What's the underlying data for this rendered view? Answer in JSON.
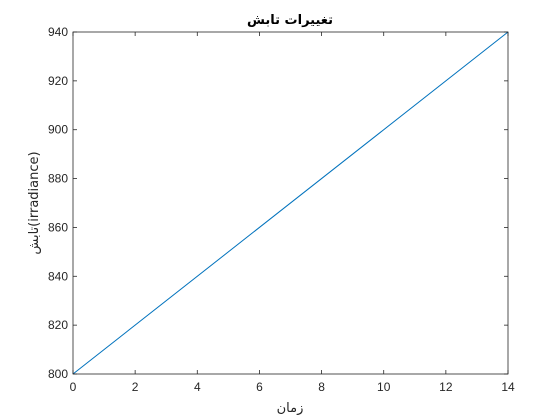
{
  "chart_data": {
    "type": "line",
    "title": "تغییرات تابش",
    "xlabel": "زمان",
    "ylabel": "تابش(irradiance)",
    "xlim": [
      0,
      14
    ],
    "ylim": [
      800,
      940
    ],
    "xticks": [
      0,
      2,
      4,
      6,
      8,
      10,
      12,
      14
    ],
    "yticks": [
      800,
      820,
      840,
      860,
      880,
      900,
      920,
      940
    ],
    "grid": false,
    "box": true,
    "series": [
      {
        "x": [
          0,
          14
        ],
        "y": [
          800,
          940
        ],
        "color": "#0072bd"
      }
    ]
  }
}
